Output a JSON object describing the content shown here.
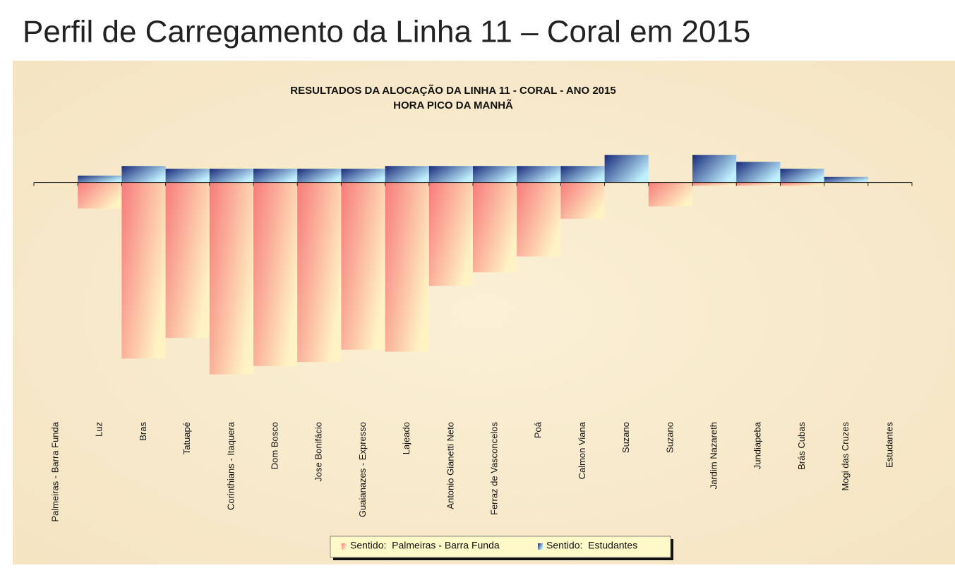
{
  "slide_title": "Perfil de Carregamento da Linha 11 – Coral em 2015",
  "chart_data": {
    "type": "bar",
    "title": "RESULTADOS DA ALOCAÇÃO DA LINHA 11 - CORAL - ANO 2015",
    "subtitle": "HORA PICO DA MANHÃ",
    "categories": [
      "Palmeiras - Barra Funda",
      "Luz",
      "Bras",
      "Tatuapé",
      "Corinthians - Itaquera",
      "Dom Bosco",
      "Jose Bonifácio",
      "Guaianazes - Expresso",
      "Lajeado",
      "Antonio Gianetti Neto",
      "Ferraz de Vasconcelos",
      "Poá",
      "Calmon Viana",
      "Suzano",
      "Suzano",
      "Jardim Nazareth",
      "Jundiapeba",
      "Brás Cubas",
      "Mogi das Cruzes",
      "Estudantes"
    ],
    "series": [
      {
        "name": "Sentido:  Palmeiras - Barra Funda",
        "color": "#f77b7b",
        "values": [
          0,
          -38,
          -257,
          -227,
          -280,
          -268,
          -262,
          -244,
          -247,
          -151,
          -131,
          -108,
          -53,
          0,
          -35,
          -5,
          -5,
          -5,
          0,
          0
        ]
      },
      {
        "name": "Sentido:  Estudantes",
        "color": "#1a2a7a",
        "values": [
          0,
          10,
          24,
          20,
          20,
          20,
          20,
          20,
          24,
          24,
          24,
          24,
          24,
          40,
          0,
          40,
          30,
          20,
          8,
          0
        ]
      }
    ],
    "ylim": [
      -300,
      50
    ],
    "legend": "bottom"
  }
}
